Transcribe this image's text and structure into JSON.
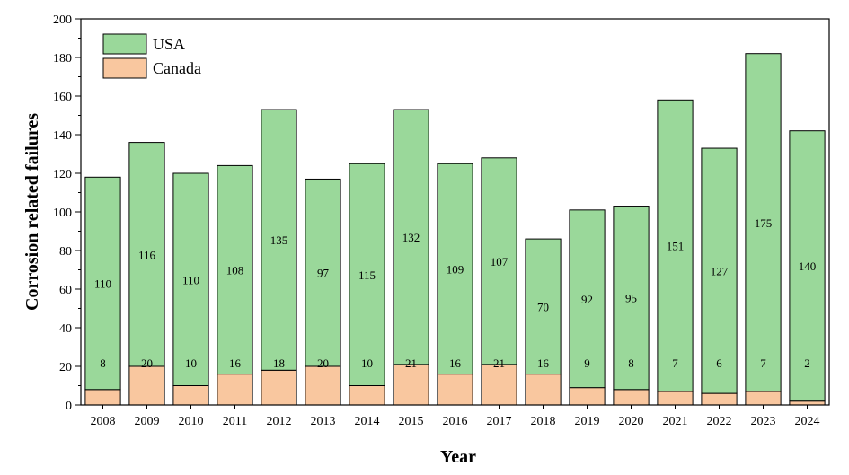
{
  "chart_data": {
    "type": "bar",
    "stacked": true,
    "categories": [
      "2008",
      "2009",
      "2010",
      "2011",
      "2012",
      "2013",
      "2014",
      "2015",
      "2016",
      "2017",
      "2018",
      "2019",
      "2020",
      "2021",
      "2022",
      "2023",
      "2024"
    ],
    "series": [
      {
        "name": "Canada",
        "color": "#f9c79f",
        "values": [
          8,
          20,
          10,
          16,
          18,
          20,
          10,
          21,
          16,
          21,
          16,
          9,
          8,
          7,
          6,
          7,
          2
        ]
      },
      {
        "name": "USA",
        "color": "#9ad89a",
        "values": [
          110,
          116,
          110,
          108,
          135,
          97,
          115,
          132,
          109,
          107,
          70,
          92,
          95,
          151,
          127,
          175,
          140
        ]
      }
    ],
    "xlabel": "Year",
    "ylabel": "Corrosion related failures",
    "ylim": [
      0,
      200
    ],
    "yticks": [
      0,
      20,
      40,
      60,
      80,
      100,
      120,
      140,
      160,
      180,
      200
    ],
    "legend": {
      "placement": "top-left",
      "order": [
        "USA",
        "Canada"
      ]
    },
    "grid": false
  }
}
